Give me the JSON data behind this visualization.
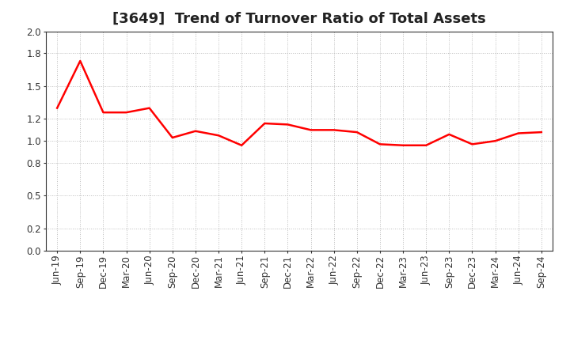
{
  "title": "[3649]  Trend of Turnover Ratio of Total Assets",
  "x_labels": [
    "Jun-19",
    "Sep-19",
    "Dec-19",
    "Mar-20",
    "Jun-20",
    "Sep-20",
    "Dec-20",
    "Mar-21",
    "Jun-21",
    "Sep-21",
    "Dec-21",
    "Mar-22",
    "Jun-22",
    "Sep-22",
    "Dec-22",
    "Mar-23",
    "Jun-23",
    "Sep-23",
    "Dec-23",
    "Mar-24",
    "Jun-24",
    "Sep-24"
  ],
  "y_values": [
    1.3,
    1.73,
    1.26,
    1.26,
    1.3,
    1.03,
    1.09,
    1.05,
    0.96,
    1.16,
    1.15,
    1.1,
    1.1,
    1.08,
    0.97,
    0.96,
    0.96,
    1.06,
    0.97,
    1.0,
    1.07,
    1.08
  ],
  "line_color": "#FF0000",
  "line_width": 1.8,
  "ylim": [
    0.0,
    2.0
  ],
  "yticks": [
    0.0,
    0.2,
    0.5,
    0.8,
    1.0,
    1.2,
    1.5,
    1.8,
    2.0
  ],
  "background_color": "#ffffff",
  "plot_bg_color": "#ffffff",
  "grid_color": "#bbbbbb",
  "title_fontsize": 13,
  "tick_fontsize": 8.5
}
